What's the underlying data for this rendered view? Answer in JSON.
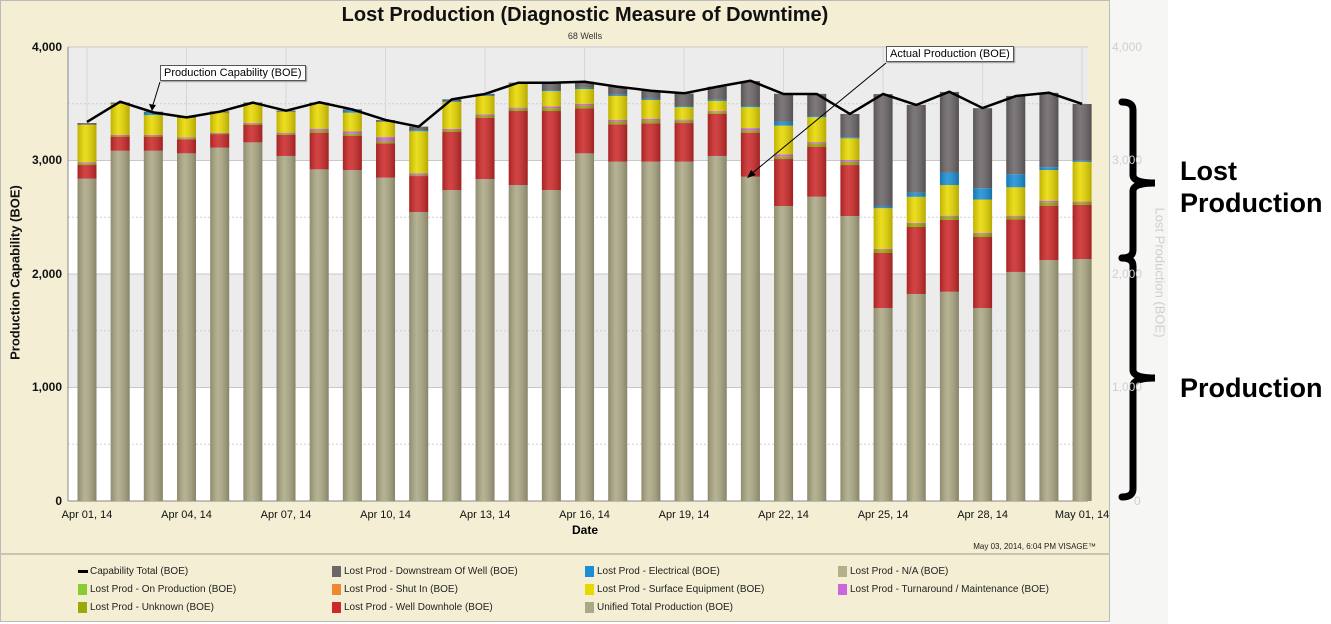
{
  "chart_data": {
    "type": "bar",
    "stacked": true,
    "title": "Lost Production (Diagnostic Measure of Downtime)",
    "subtitle": "68 Wells",
    "xlabel": "Date",
    "ylabel": "Production Capability (BOE)",
    "y2label": "Lost Production (BOE)",
    "ylim": [
      0,
      4000
    ],
    "yticks": [
      "0",
      "1,000",
      "2,000",
      "3,000",
      "4,000"
    ],
    "xtick_labels": [
      "Apr 01, 14",
      "Apr 04, 14",
      "Apr 07, 14",
      "Apr 10, 14",
      "Apr 13, 14",
      "Apr 16, 14",
      "Apr 19, 14",
      "Apr 22, 14",
      "Apr 25, 14",
      "Apr 28, 14",
      "May 01, 14"
    ],
    "grid": true,
    "legend_position": "bottom",
    "categories": [
      "Apr 01",
      "Apr 02",
      "Apr 03",
      "Apr 04",
      "Apr 05",
      "Apr 06",
      "Apr 07",
      "Apr 08",
      "Apr 09",
      "Apr 10",
      "Apr 11",
      "Apr 12",
      "Apr 13",
      "Apr 14",
      "Apr 15",
      "Apr 16",
      "Apr 17",
      "Apr 18",
      "Apr 19",
      "Apr 20",
      "Apr 21",
      "Apr 22",
      "Apr 23",
      "Apr 24",
      "Apr 25",
      "Apr 26",
      "Apr 27",
      "Apr 28",
      "Apr 29",
      "Apr 30",
      "May 01"
    ],
    "capability": {
      "name": "Capability Total (BOE)",
      "color": "#000000",
      "values": [
        3340,
        3518,
        3424,
        3380,
        3430,
        3510,
        3439,
        3513,
        3450,
        3357,
        3298,
        3539,
        3586,
        3685,
        3685,
        3694,
        3650,
        3615,
        3592,
        3650,
        3703,
        3586,
        3586,
        3410,
        3586,
        3489,
        3606,
        3462,
        3568,
        3597,
        3498
      ]
    },
    "series": [
      {
        "name": "Unified Total Production (BOE)",
        "color": "#aca885",
        "values": [
          2840,
          3086,
          3086,
          3063,
          3113,
          3160,
          3040,
          2922,
          2916,
          2849,
          2546,
          2740,
          2837,
          2784,
          2740,
          3063,
          2990,
          2990,
          2990,
          3040,
          2857,
          2599,
          2681,
          2511,
          1700,
          1824,
          1844,
          1700,
          2018,
          2123,
          2132
        ]
      },
      {
        "name": "Lost Prod - Well Downhole (BOE)",
        "color": "#cc2a2a",
        "values": [
          120,
          124,
          124,
          123,
          120,
          153,
          185,
          323,
          300,
          302,
          317,
          514,
          540,
          652,
          696,
          397,
          329,
          338,
          340,
          370,
          388,
          414,
          441,
          449,
          485,
          590,
          632,
          626,
          464,
          479,
          476
        ]
      },
      {
        "name": "Lost Prod - Unknown (BOE)",
        "color": "#9aa80a",
        "values": [
          15,
          10,
          10,
          10,
          5,
          10,
          12,
          20,
          20,
          20,
          10,
          15,
          20,
          20,
          25,
          25,
          25,
          25,
          20,
          15,
          20,
          20,
          30,
          30,
          30,
          30,
          30,
          25,
          25,
          30,
          25
        ]
      },
      {
        "name": "Lost Prod - Turnaround / Maintenance (BOE)",
        "color": "#cc66dd",
        "values": [
          10,
          5,
          5,
          8,
          5,
          8,
          8,
          15,
          20,
          35,
          15,
          10,
          10,
          10,
          15,
          15,
          15,
          15,
          10,
          10,
          20,
          20,
          10,
          15,
          5,
          6,
          8,
          10,
          7,
          14,
          5
        ]
      },
      {
        "name": "Lost Prod - Surface Equipment (BOE)",
        "color": "#e8d800",
        "values": [
          330,
          275,
          175,
          175,
          180,
          170,
          185,
          220,
          165,
          135,
          370,
          240,
          165,
          210,
          135,
          130,
          210,
          165,
          110,
          90,
          185,
          255,
          220,
          190,
          360,
          230,
          270,
          295,
          250,
          270,
          350
        ]
      },
      {
        "name": "Lost Prod - Electrical (BOE)",
        "color": "#1a8fd6",
        "values": [
          0,
          0,
          25,
          0,
          0,
          0,
          0,
          0,
          20,
          0,
          10,
          5,
          5,
          0,
          10,
          10,
          10,
          10,
          10,
          10,
          10,
          35,
          10,
          10,
          15,
          35,
          110,
          100,
          115,
          25,
          10
        ]
      },
      {
        "name": "Lost Prod - Downstream Of Well (BOE)",
        "color": "#6b6668",
        "values": [
          15,
          10,
          5,
          5,
          10,
          10,
          10,
          10,
          10,
          15,
          30,
          15,
          10,
          10,
          65,
          55,
          70,
          70,
          110,
          115,
          220,
          245,
          195,
          205,
          990,
          775,
          710,
          705,
          690,
          655,
          500
        ]
      }
    ],
    "legend": [
      {
        "label": "Capability Total (BOE)",
        "color": "#000000",
        "kind": "line"
      },
      {
        "label": "Lost Prod - Downstream Of Well (BOE)",
        "color": "#6b6668"
      },
      {
        "label": "Lost Prod - Electrical (BOE)",
        "color": "#1a8fd6"
      },
      {
        "label": "Lost Prod - N/A (BOE)",
        "color": "#b5b08c"
      },
      {
        "label": "Lost Prod - On Production (BOE)",
        "color": "#88cc33"
      },
      {
        "label": "Lost Prod - Shut In (BOE)",
        "color": "#ee8833"
      },
      {
        "label": "Lost Prod - Surface Equipment (BOE)",
        "color": "#e8d800"
      },
      {
        "label": "Lost Prod - Turnaround / Maintenance (BOE)",
        "color": "#cc66dd"
      },
      {
        "label": "Lost Prod - Unknown (BOE)",
        "color": "#9aa80a"
      },
      {
        "label": "Lost Prod - Well Downhole (BOE)",
        "color": "#cc2a2a"
      },
      {
        "label": "Unified Total Production (BOE)",
        "color": "#aca885"
      }
    ],
    "annotations": {
      "capability_callout": "Production Capability (BOE)",
      "actual_callout": "Actual Production (BOE)",
      "lost_brace_label": "Lost Production",
      "production_brace_label": "Production"
    },
    "timestamp": "May 03, 2014, 6:04 PM  VISAGE™"
  }
}
